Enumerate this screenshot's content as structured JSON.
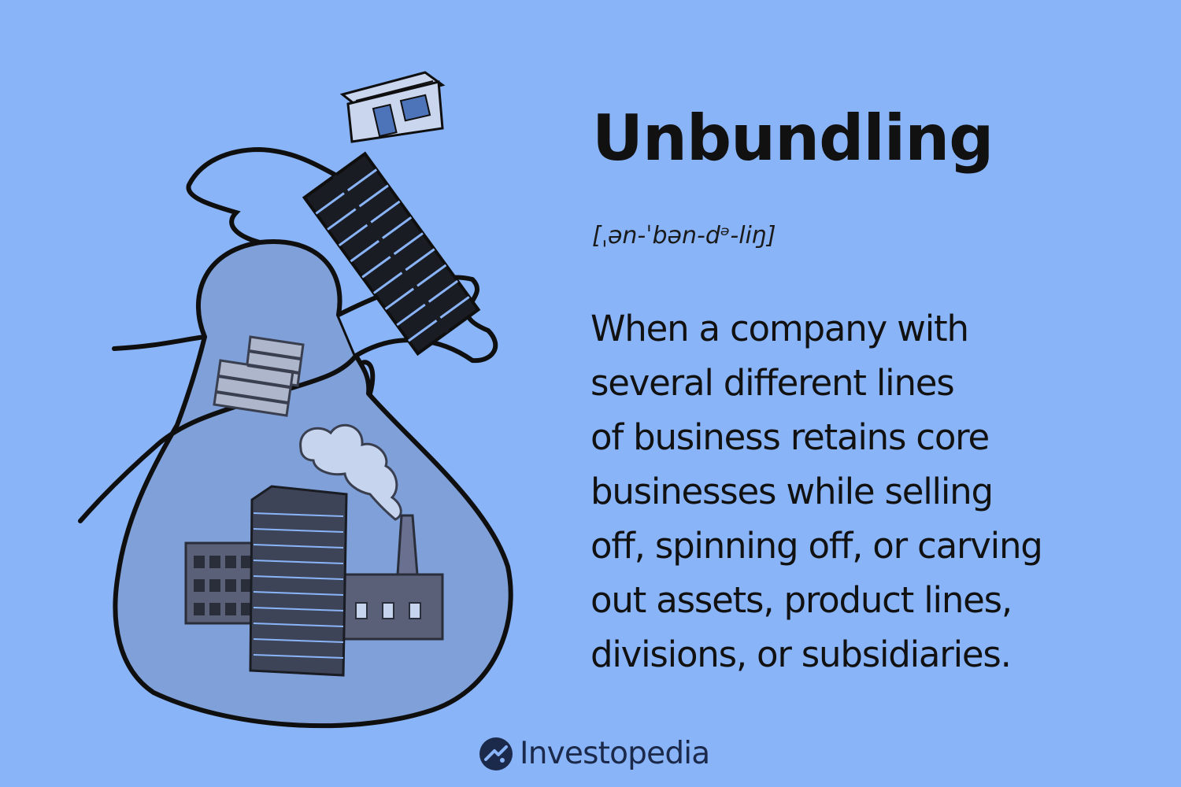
{
  "term": "Unbundling",
  "pronunciation": "[ˌən-ˈbən-dᵊ-liŋ]",
  "definition_lines": [
    "When a company with",
    "several different lines",
    "of business retains core",
    "businesses while selling",
    "off, spinning off, or carving",
    "out assets, product lines,",
    "divisions, or subsidiaries."
  ],
  "brand": {
    "name": "Investopedia",
    "logo_icon": "investopedia-logo-icon"
  },
  "illustration": {
    "subject": "bag-of-businesses",
    "icons": [
      "money-bag-icon",
      "storefront-icon",
      "office-tower-icon",
      "small-building-icon",
      "factory-icon",
      "smoke-icon"
    ]
  },
  "colors": {
    "background": "#8ab4f8",
    "bag_fill": "#7fa0d8",
    "ink": "#111111",
    "buildings": "#5a6078",
    "brand_text": "#1b2a4a"
  }
}
